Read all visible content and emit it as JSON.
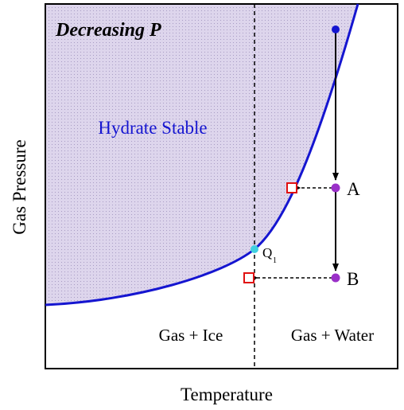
{
  "title": "Decreasing P",
  "regions": {
    "hydrate": "Hydrate Stable",
    "ice": "Gas + Ice",
    "water": "Gas + Water"
  },
  "points": {
    "a": "A",
    "b": "B",
    "q": {
      "letter": "Q",
      "subscript": "1"
    }
  },
  "axes": {
    "x": "Temperature",
    "y": "Gas Pressure"
  }
}
